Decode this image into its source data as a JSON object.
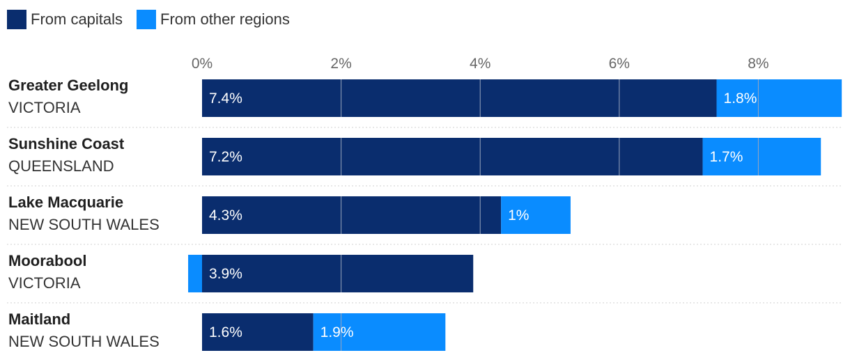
{
  "colors": {
    "capitals": "#0a2d6e",
    "other": "#0a8cff",
    "grid": "#9aa6bd",
    "divider": "#cfcfcf"
  },
  "legend": {
    "capitals_label": "From capitals",
    "other_label": "From other regions"
  },
  "chart_data": {
    "type": "bar",
    "orientation": "horizontal",
    "stacked": true,
    "categories": [
      {
        "name": "Greater Geelong",
        "state": "VICTORIA"
      },
      {
        "name": "Sunshine Coast",
        "state": "QUEENSLAND"
      },
      {
        "name": "Lake Macquarie",
        "state": "NEW SOUTH WALES"
      },
      {
        "name": "Moorabool",
        "state": "VICTORIA"
      },
      {
        "name": "Maitland",
        "state": "NEW SOUTH WALES"
      }
    ],
    "series": [
      {
        "name": "From capitals",
        "values": [
          7.4,
          7.2,
          4.3,
          3.9,
          1.6
        ],
        "labels": [
          "7.4%",
          "7.2%",
          "4.3%",
          "3.9%",
          "1.6%"
        ]
      },
      {
        "name": "From other regions",
        "values": [
          1.8,
          1.7,
          1,
          -0.2,
          1.9
        ],
        "labels": [
          "1.8%",
          "1.7%",
          "1%",
          "",
          "1.9%"
        ]
      }
    ],
    "xticks": [
      0,
      2,
      4,
      6,
      8
    ],
    "xtick_labels": [
      "0%",
      "2%",
      "4%",
      "6%",
      "8%"
    ],
    "xlim": [
      0,
      9.2
    ],
    "legend_position": "top-left"
  }
}
